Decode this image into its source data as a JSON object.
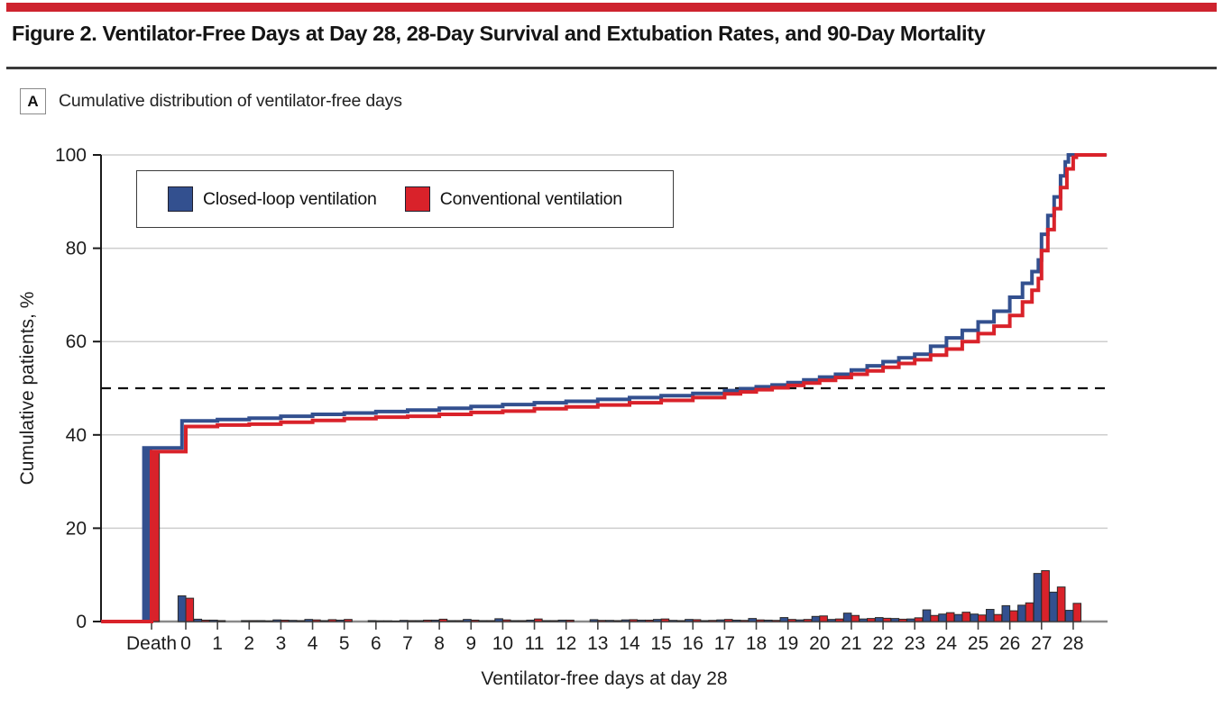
{
  "masthead": {
    "color": "#CE232E"
  },
  "header": {
    "title": "Figure 2. Ventilator-Free Days at Day 28, 28-Day Survival and Extubation Rates, and 90-Day Mortality"
  },
  "panel": {
    "label": "A",
    "title": "Cumulative distribution of ventilator-free days"
  },
  "legend": {
    "items": [
      {
        "label": "Closed-loop ventilation",
        "color": "#33508F"
      },
      {
        "label": "Conventional ventilation",
        "color": "#D9222A"
      }
    ]
  },
  "chart_data": {
    "type": "line",
    "subtype": "cumulative-step-curves-with-histogram",
    "title": "Cumulative distribution of ventilator-free days",
    "xlabel": "Ventilator-free days at day 28",
    "ylabel": "Cumulative patients, %",
    "ylim": [
      0,
      100
    ],
    "grid": "horizontal",
    "legend_position": "top-left-inside",
    "reference_line_y": 50,
    "y_ticks": [
      0,
      20,
      40,
      60,
      80,
      100
    ],
    "x_tick_labels": [
      "Death",
      "0",
      "1",
      "2",
      "3",
      "4",
      "5",
      "6",
      "7",
      "8",
      "9",
      "10",
      "11",
      "12",
      "13",
      "14",
      "15",
      "16",
      "17",
      "18",
      "19",
      "20",
      "21",
      "22",
      "23",
      "24",
      "25",
      "26",
      "27",
      "28"
    ],
    "x_tick_days": [
      -1.08,
      0,
      1,
      2,
      3,
      4,
      5,
      6,
      7,
      8,
      9,
      10,
      11,
      12,
      13,
      14,
      15,
      16,
      17,
      18,
      19,
      20,
      21,
      22,
      23,
      24,
      25,
      26,
      27,
      28
    ],
    "series": [
      {
        "name": "Closed-loop ventilation",
        "color": "#33508F",
        "step_points": [
          [
            -2.67,
            0
          ],
          [
            -1.32,
            0
          ],
          [
            -1.32,
            37.2
          ],
          [
            -0.12,
            37.2
          ],
          [
            -0.12,
            43.0
          ],
          [
            1,
            43.3
          ],
          [
            2,
            43.6
          ],
          [
            3,
            44.0
          ],
          [
            4,
            44.4
          ],
          [
            5,
            44.7
          ],
          [
            6,
            45.0
          ],
          [
            7,
            45.3
          ],
          [
            8,
            45.7
          ],
          [
            9,
            46.1
          ],
          [
            10,
            46.5
          ],
          [
            11,
            46.9
          ],
          [
            12,
            47.2
          ],
          [
            13,
            47.6
          ],
          [
            14,
            48.0
          ],
          [
            15,
            48.4
          ],
          [
            16,
            48.9
          ],
          [
            17,
            49.5
          ],
          [
            17.5,
            49.9
          ],
          [
            18,
            50.3
          ],
          [
            18.5,
            50.7
          ],
          [
            19,
            51.2
          ],
          [
            19.5,
            51.8
          ],
          [
            20,
            52.4
          ],
          [
            20.5,
            53.0
          ],
          [
            21,
            53.9
          ],
          [
            21.5,
            54.8
          ],
          [
            22,
            55.7
          ],
          [
            22.5,
            56.5
          ],
          [
            23,
            57.3
          ],
          [
            23.5,
            59.0
          ],
          [
            24,
            60.8
          ],
          [
            24.5,
            62.4
          ],
          [
            25,
            64.2
          ],
          [
            25.5,
            66.5
          ],
          [
            26,
            69.5
          ],
          [
            26.4,
            72.5
          ],
          [
            26.7,
            75.0
          ],
          [
            26.9,
            77.5
          ],
          [
            27,
            83.0
          ],
          [
            27.2,
            87.0
          ],
          [
            27.4,
            91.0
          ],
          [
            27.6,
            95.5
          ],
          [
            27.75,
            98.5
          ],
          [
            27.85,
            100
          ],
          [
            29.05,
            100
          ]
        ]
      },
      {
        "name": "Conventional ventilation",
        "color": "#D9222A",
        "step_points": [
          [
            -2.67,
            0
          ],
          [
            -1.08,
            0
          ],
          [
            -1.08,
            36.4
          ],
          [
            0,
            36.4
          ],
          [
            0,
            41.8
          ],
          [
            1,
            42.1
          ],
          [
            2,
            42.3
          ],
          [
            3,
            42.7
          ],
          [
            4,
            43.1
          ],
          [
            5,
            43.5
          ],
          [
            6,
            43.8
          ],
          [
            7,
            44.0
          ],
          [
            8,
            44.4
          ],
          [
            9,
            44.8
          ],
          [
            10,
            45.1
          ],
          [
            11,
            45.6
          ],
          [
            12,
            46.0
          ],
          [
            13,
            46.4
          ],
          [
            14,
            46.9
          ],
          [
            15,
            47.4
          ],
          [
            16,
            48.0
          ],
          [
            17,
            48.8
          ],
          [
            17.5,
            49.2
          ],
          [
            18,
            49.7
          ],
          [
            18.5,
            50.1
          ],
          [
            19,
            50.6
          ],
          [
            19.5,
            51.1
          ],
          [
            20,
            51.7
          ],
          [
            20.5,
            52.3
          ],
          [
            21,
            53.0
          ],
          [
            21.5,
            53.7
          ],
          [
            22,
            54.5
          ],
          [
            22.5,
            55.3
          ],
          [
            23,
            56.1
          ],
          [
            23.5,
            57.1
          ],
          [
            24,
            58.4
          ],
          [
            24.5,
            60.0
          ],
          [
            25,
            61.7
          ],
          [
            25.5,
            63.3
          ],
          [
            26,
            65.6
          ],
          [
            26.4,
            68.5
          ],
          [
            26.7,
            71.0
          ],
          [
            26.9,
            73.5
          ],
          [
            27,
            79.5
          ],
          [
            27.2,
            84.0
          ],
          [
            27.4,
            88.5
          ],
          [
            27.6,
            93.0
          ],
          [
            27.8,
            97.0
          ],
          [
            28,
            99.5
          ],
          [
            28.1,
            100
          ],
          [
            29.05,
            100
          ]
        ]
      }
    ],
    "histogram_bins_columns": [
      "ventilator_free_days (Death = -1.08)",
      "closed_loop_pct",
      "conventional_pct"
    ],
    "histogram_bins": [
      [
        -1.08,
        37.2,
        36.4
      ],
      [
        0,
        5.5,
        5.0
      ],
      [
        0.5,
        0.5,
        0.3
      ],
      [
        1,
        0.3,
        0.2
      ],
      [
        2,
        0.2,
        0.2
      ],
      [
        2.5,
        0.2,
        0.15
      ],
      [
        3,
        0.35,
        0.3
      ],
      [
        3.5,
        0.25,
        0.2
      ],
      [
        4,
        0.45,
        0.35
      ],
      [
        4.5,
        0.2,
        0.4
      ],
      [
        5,
        0.3,
        0.45
      ],
      [
        6,
        0.2,
        0.15
      ],
      [
        6.5,
        0.15,
        0.1
      ],
      [
        7,
        0.25,
        0.2
      ],
      [
        7.5,
        0.2,
        0.3
      ],
      [
        8,
        0.3,
        0.5
      ],
      [
        8.5,
        0.2,
        0.2
      ],
      [
        9,
        0.45,
        0.3
      ],
      [
        9.5,
        0.2,
        0.2
      ],
      [
        10,
        0.6,
        0.35
      ],
      [
        10.5,
        0.2,
        0.2
      ],
      [
        11,
        0.3,
        0.55
      ],
      [
        11.5,
        0.2,
        0.2
      ],
      [
        12,
        0.3,
        0.3
      ],
      [
        13,
        0.4,
        0.25
      ],
      [
        13.5,
        0.25,
        0.2
      ],
      [
        14,
        0.35,
        0.4
      ],
      [
        14.5,
        0.3,
        0.3
      ],
      [
        15,
        0.45,
        0.55
      ],
      [
        15.5,
        0.25,
        0.2
      ],
      [
        16,
        0.45,
        0.4
      ],
      [
        16.5,
        0.2,
        0.25
      ],
      [
        17,
        0.35,
        0.45
      ],
      [
        17.5,
        0.3,
        0.25
      ],
      [
        18,
        0.65,
        0.35
      ],
      [
        18.5,
        0.3,
        0.25
      ],
      [
        19,
        0.85,
        0.45
      ],
      [
        19.5,
        0.35,
        0.45
      ],
      [
        20,
        1.1,
        1.2
      ],
      [
        20.5,
        0.45,
        0.55
      ],
      [
        21,
        1.8,
        1.3
      ],
      [
        21.5,
        0.55,
        0.65
      ],
      [
        22,
        0.85,
        0.7
      ],
      [
        22.5,
        0.65,
        0.5
      ],
      [
        23,
        0.55,
        0.8
      ],
      [
        23.5,
        2.5,
        1.3
      ],
      [
        24,
        1.6,
        1.9
      ],
      [
        24.5,
        1.5,
        2.0
      ],
      [
        25,
        1.6,
        1.4
      ],
      [
        25.5,
        2.6,
        1.5
      ],
      [
        26,
        3.4,
        2.3
      ],
      [
        26.5,
        3.5,
        4.0
      ],
      [
        27,
        10.3,
        10.9
      ],
      [
        27.5,
        6.3,
        7.4
      ],
      [
        28,
        2.4,
        3.9
      ]
    ]
  }
}
